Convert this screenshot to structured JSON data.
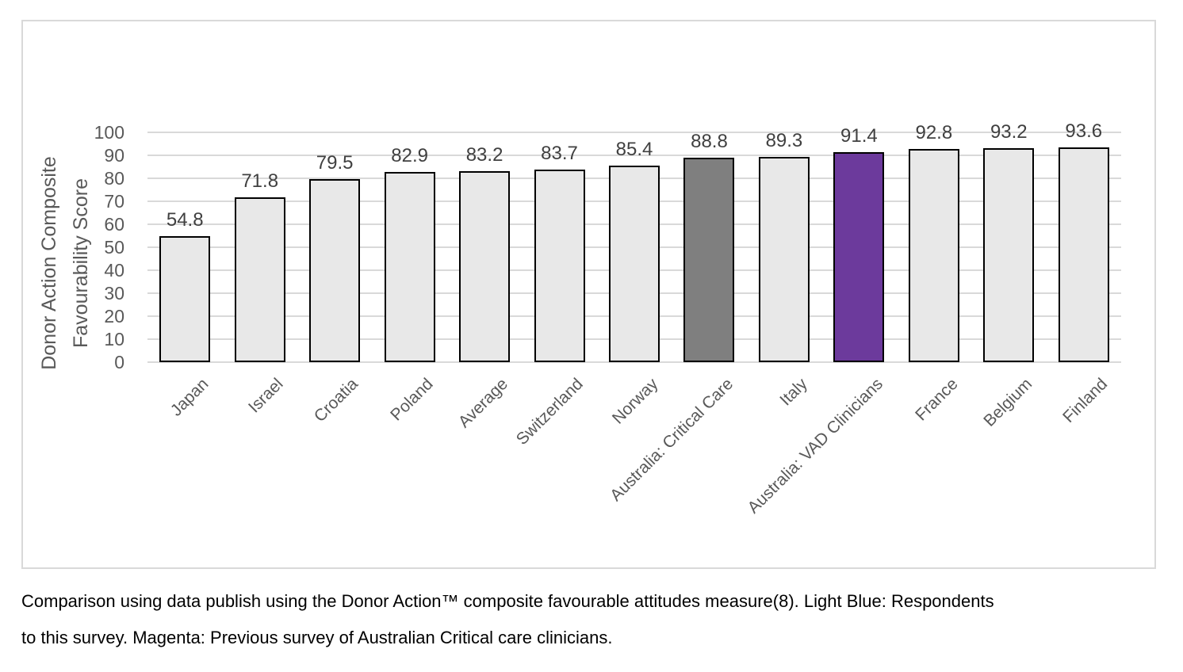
{
  "figure": {
    "caption_lines": [
      "Comparison using data publish using the Donor Action™ composite favourable attitudes measure(8). Light Blue: Respondents",
      "to this survey. Magenta: Previous survey of Australian Critical care clinicians."
    ]
  },
  "chart_data": {
    "type": "bar",
    "title": "",
    "categories": [
      "Japan",
      "Israel",
      "Croatia",
      "Poland",
      "Average",
      "Switzerland",
      "Norway",
      "Australia: Critical Care",
      "Italy",
      "Australia: VAD Clinicians",
      "France",
      "Belgium",
      "Finland"
    ],
    "values": [
      54.8,
      71.8,
      79.5,
      82.9,
      83.2,
      83.7,
      85.4,
      88.8,
      89.3,
      91.4,
      92.8,
      93.2,
      93.6
    ],
    "bar_colors": [
      "#e8e8e8",
      "#e8e8e8",
      "#e8e8e8",
      "#e8e8e8",
      "#e8e8e8",
      "#e8e8e8",
      "#e8e8e8",
      "#7f7f7f",
      "#e8e8e8",
      "#6c3a9c",
      "#e8e8e8",
      "#e8e8e8",
      "#e8e8e8"
    ],
    "bar_border_color": "#000000",
    "xlabel": "",
    "ylabel": "Donor Action Composite Favourability Score",
    "ylabel_lines": [
      "Donor Action Composite",
      "Favourability Score"
    ],
    "ylim": [
      0,
      100
    ],
    "ytick_step": 10,
    "yticks": [
      0,
      10,
      20,
      30,
      40,
      50,
      60,
      70,
      80,
      90,
      100
    ],
    "grid": true,
    "legend": "none",
    "colors": {
      "gridline": "#d9d9d9",
      "frame_border": "#d9d9d9",
      "axis_text": "#595959",
      "data_label_text": "#404040",
      "caption_text": "#000000"
    }
  }
}
